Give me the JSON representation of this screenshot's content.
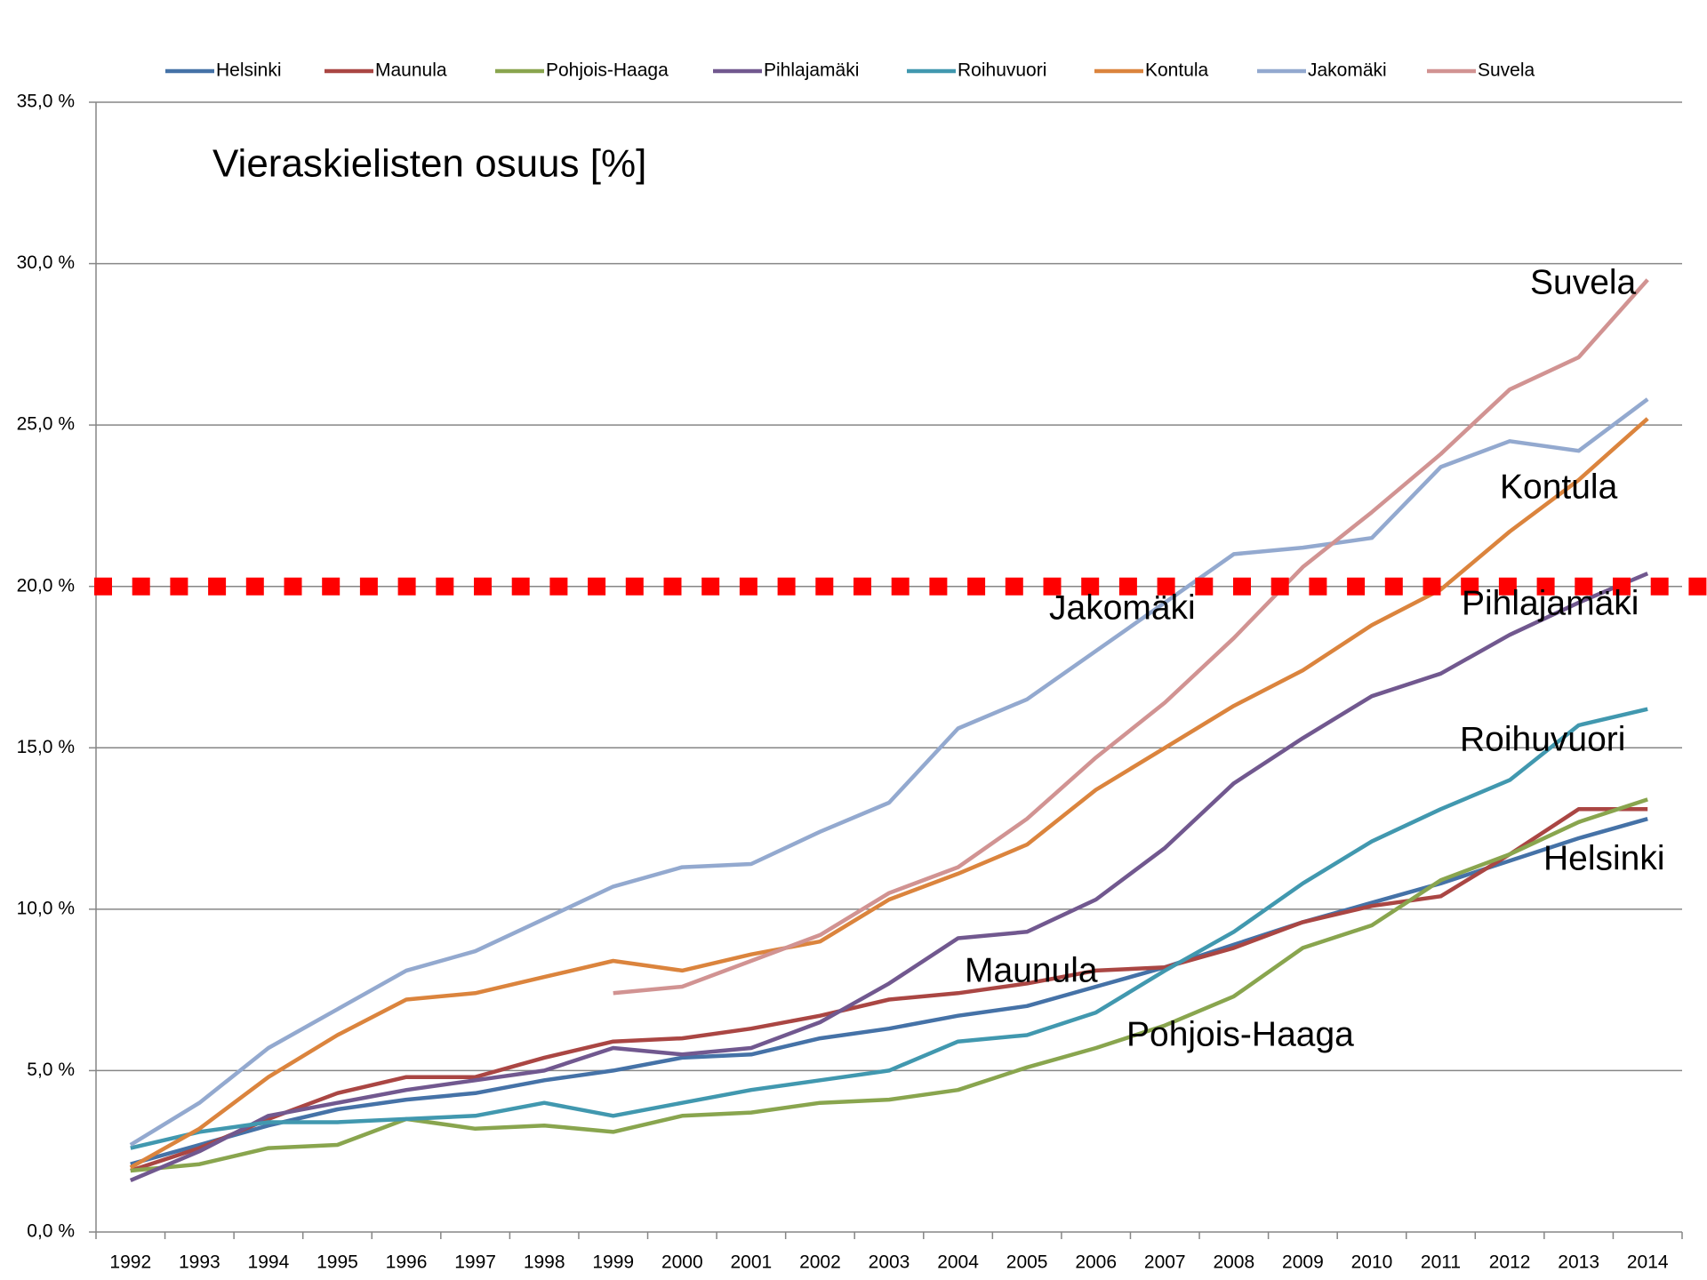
{
  "chart_data": {
    "type": "line",
    "title": "Vieraskielisten osuus [%]",
    "categories": [
      "1992",
      "1993",
      "1994",
      "1995",
      "1996",
      "1997",
      "1998",
      "1999",
      "2000",
      "2001",
      "2002",
      "2003",
      "2004",
      "2005",
      "2006",
      "2007",
      "2008",
      "2009",
      "2010",
      "2011",
      "2012",
      "2013",
      "2014"
    ],
    "series": [
      {
        "name": "Helsinki",
        "color": "#4572a7",
        "values": [
          2.1,
          2.7,
          3.3,
          3.8,
          4.1,
          4.3,
          4.7,
          5.0,
          5.4,
          5.5,
          6.0,
          6.3,
          6.7,
          7.0,
          7.6,
          8.2,
          8.9,
          9.6,
          10.2,
          10.8,
          11.5,
          12.2,
          12.8
        ]
      },
      {
        "name": "Maunula",
        "color": "#aa4643",
        "values": [
          1.9,
          2.6,
          3.5,
          4.3,
          4.8,
          4.8,
          5.4,
          5.9,
          6.0,
          6.3,
          6.7,
          7.2,
          7.4,
          7.7,
          8.1,
          8.2,
          8.8,
          9.6,
          10.1,
          10.4,
          11.7,
          13.1,
          13.1
        ]
      },
      {
        "name": "Pohjois-Haaga",
        "color": "#89a54e",
        "values": [
          1.9,
          2.1,
          2.6,
          2.7,
          3.5,
          3.2,
          3.3,
          3.1,
          3.6,
          3.7,
          4.0,
          4.1,
          4.4,
          5.1,
          5.7,
          6.4,
          7.3,
          8.8,
          9.5,
          10.9,
          11.7,
          12.7,
          13.4
        ]
      },
      {
        "name": "Pihlajamäki",
        "color": "#71588f",
        "values": [
          1.6,
          2.5,
          3.6,
          4.0,
          4.4,
          4.7,
          5.0,
          5.7,
          5.5,
          5.7,
          6.5,
          7.7,
          9.1,
          9.3,
          10.3,
          11.9,
          13.9,
          15.3,
          16.6,
          17.3,
          18.5,
          19.5,
          20.4
        ]
      },
      {
        "name": "Roihuvuori",
        "color": "#4198af",
        "values": [
          2.6,
          3.1,
          3.4,
          3.4,
          3.5,
          3.6,
          4.0,
          3.6,
          4.0,
          4.4,
          4.7,
          5.0,
          5.9,
          6.1,
          6.8,
          8.1,
          9.3,
          10.8,
          12.1,
          13.1,
          14.0,
          15.7,
          16.2
        ]
      },
      {
        "name": "Kontula",
        "color": "#db843d",
        "values": [
          2.0,
          3.2,
          4.8,
          6.1,
          7.2,
          7.4,
          7.9,
          8.4,
          8.1,
          8.6,
          9.0,
          10.3,
          11.1,
          12.0,
          13.7,
          15.0,
          16.3,
          17.4,
          18.8,
          19.9,
          21.7,
          23.3,
          25.2
        ]
      },
      {
        "name": "Jakomäki",
        "color": "#93a9cf",
        "values": [
          2.7,
          4.0,
          5.7,
          6.9,
          8.1,
          8.7,
          9.7,
          10.7,
          11.3,
          11.4,
          12.4,
          13.3,
          15.6,
          16.5,
          18.0,
          19.5,
          21.0,
          21.2,
          21.5,
          23.7,
          24.5,
          24.2,
          25.8
        ]
      },
      {
        "name": "Suvela",
        "color": "#d19392",
        "values": [
          null,
          null,
          null,
          null,
          null,
          null,
          null,
          7.4,
          7.6,
          8.4,
          9.2,
          10.5,
          11.3,
          12.8,
          14.7,
          16.4,
          18.4,
          20.6,
          22.3,
          24.1,
          26.1,
          27.1,
          29.5
        ]
      }
    ],
    "ylim": [
      0,
      35
    ],
    "yticks": [
      {
        "value": 0,
        "label": "0,0 %"
      },
      {
        "value": 5,
        "label": "5,0 %"
      },
      {
        "value": 10,
        "label": "10,0 %"
      },
      {
        "value": 15,
        "label": "15,0 %"
      },
      {
        "value": 20,
        "label": "20,0 %"
      },
      {
        "value": 25,
        "label": "25,0 %"
      },
      {
        "value": 30,
        "label": "30,0 %"
      },
      {
        "value": 35,
        "label": "35,0 %"
      }
    ],
    "grid": true,
    "legend": "top",
    "reference_line": {
      "value": 20,
      "color": "#ff0000"
    },
    "annotations": [
      "Suvela",
      "Kontula",
      "Jakomäki",
      "Pihlajamäki",
      "Roihuvuori",
      "Helsinki",
      "Maunula",
      "Pohjois-Haaga"
    ]
  }
}
